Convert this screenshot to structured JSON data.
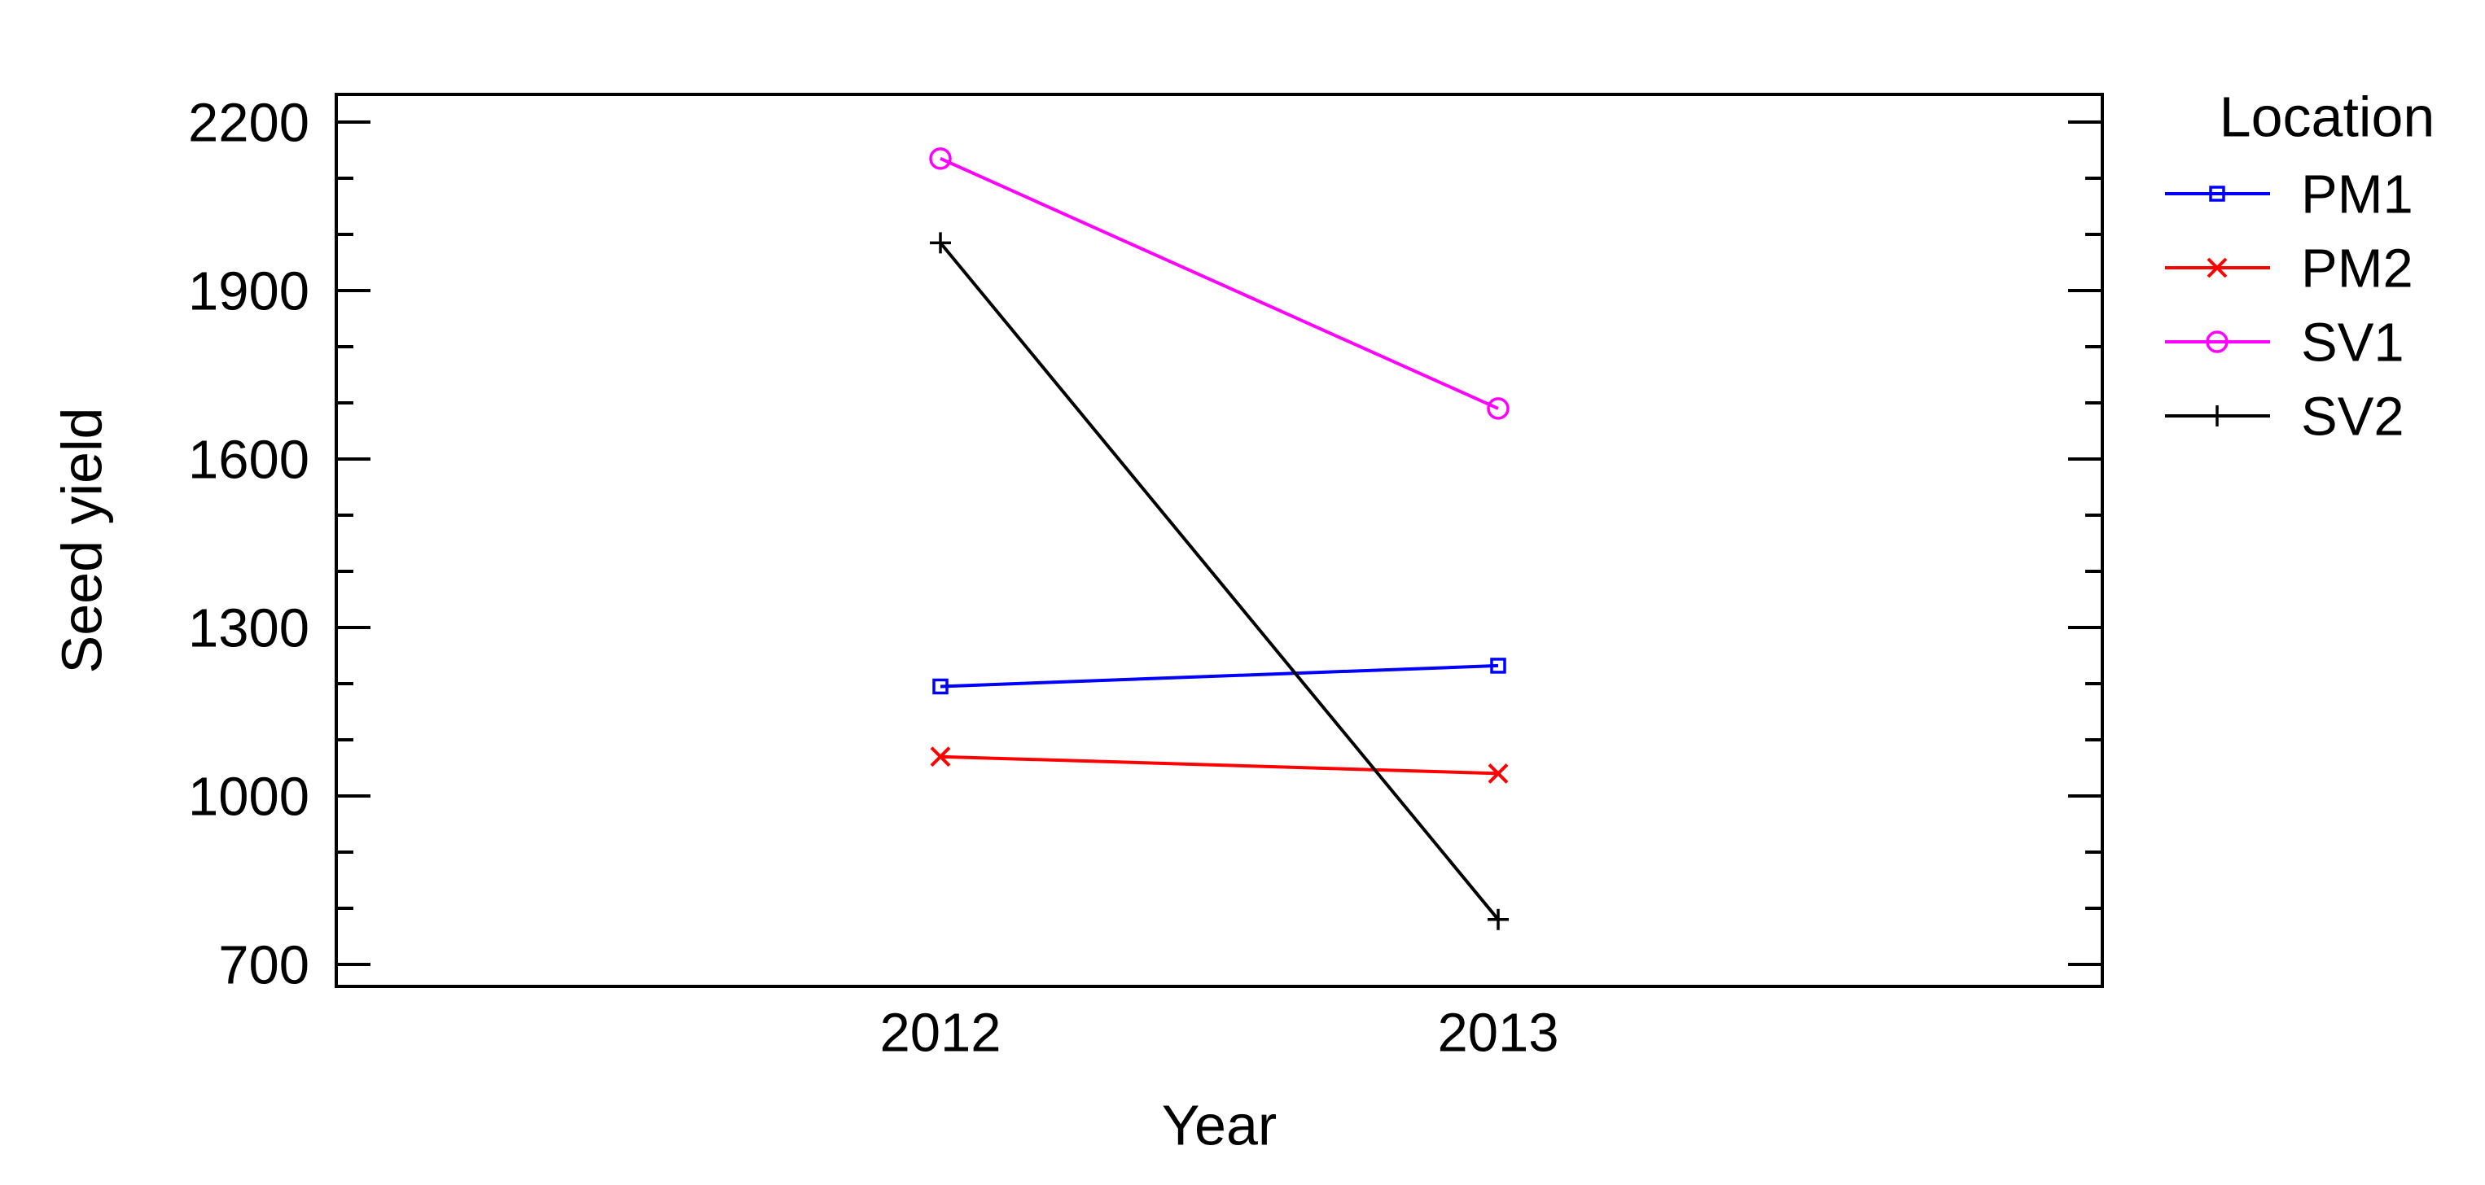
{
  "chart_data": {
    "type": "line",
    "title": "",
    "xlabel": "Year",
    "ylabel": "Seed yield",
    "categories": [
      "2012",
      "2013"
    ],
    "legend": {
      "title": "Location",
      "position": "right"
    },
    "y_axis": {
      "tick_min": 700,
      "tick_max": 2200,
      "major_step": 300,
      "minor_step": 100,
      "major_tick_labels": [
        "700",
        "1000",
        "1300",
        "1600",
        "1900",
        "2200"
      ]
    },
    "x_axis": {
      "tick_labels": [
        "2012",
        "2013"
      ]
    },
    "series": [
      {
        "name": "PM1",
        "color": "#0000ff",
        "marker": "square",
        "values": [
          1195,
          1232
        ]
      },
      {
        "name": "PM2",
        "color": "#ff0000",
        "marker": "x",
        "values": [
          1070,
          1040
        ]
      },
      {
        "name": "SV1",
        "color": "#ff00ff",
        "marker": "circle",
        "values": [
          2135,
          1690
        ]
      },
      {
        "name": "SV2",
        "color": "#000000",
        "marker": "plus",
        "values": [
          1985,
          780
        ]
      }
    ],
    "grid": false,
    "frame": true,
    "background_color": "#ffffff",
    "axis_color": "#000000"
  }
}
